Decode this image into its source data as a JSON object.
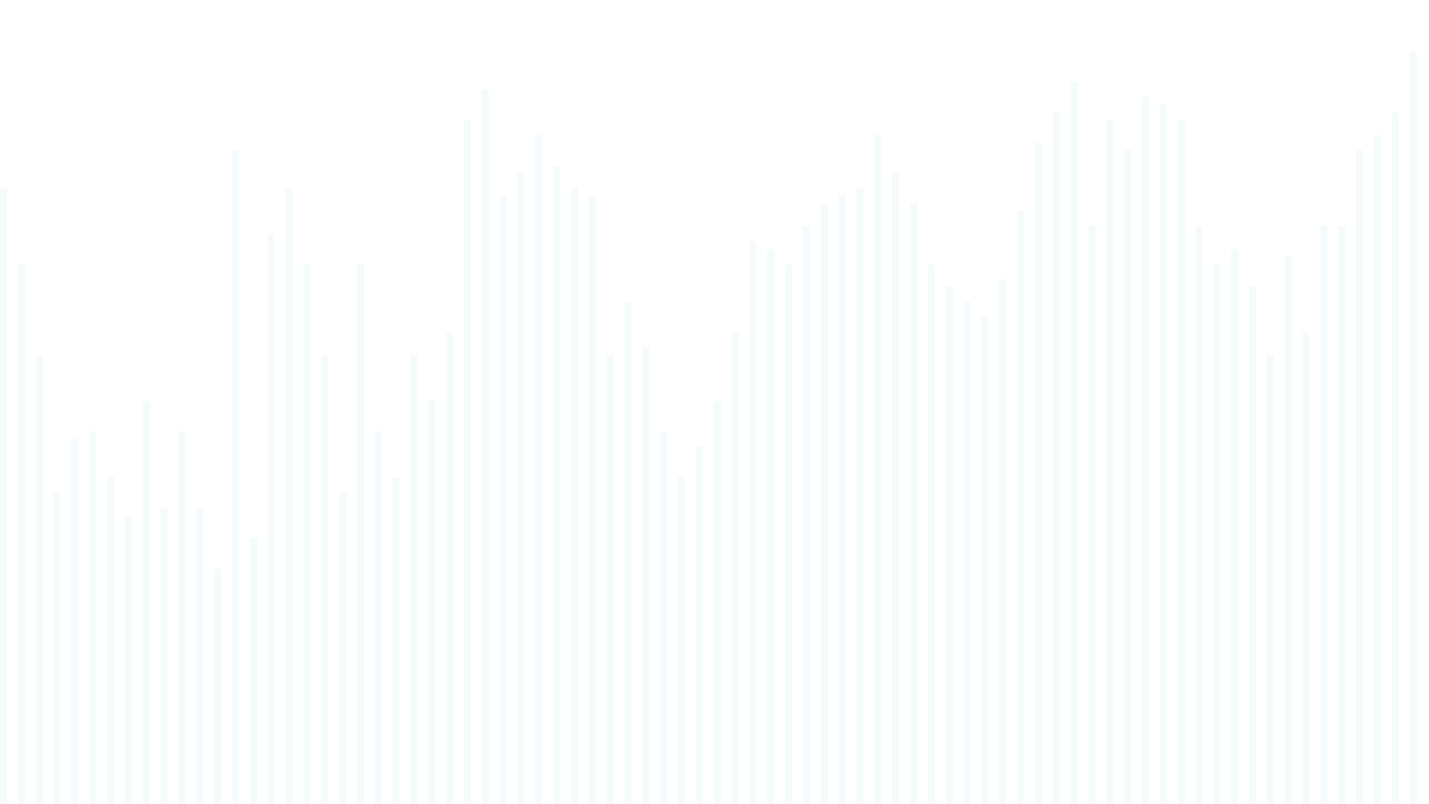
{
  "chart_data": {
    "type": "bar",
    "title": "",
    "xlabel": "",
    "ylabel": "",
    "ylim": [
      0,
      100
    ],
    "grid": false,
    "legend": "none",
    "values": [
      81,
      71,
      59,
      41,
      48,
      49,
      43,
      38,
      53,
      39,
      49,
      39,
      31,
      86,
      35,
      75,
      81,
      71,
      59,
      41,
      71,
      49,
      43,
      59,
      53,
      62,
      90,
      94,
      80,
      83,
      88,
      84,
      81,
      80,
      59,
      66,
      60,
      49,
      43,
      47,
      53,
      62,
      74,
      73,
      71,
      76,
      79,
      80,
      81,
      88,
      83,
      79,
      71,
      68,
      66,
      64,
      69,
      78,
      87,
      91,
      95,
      76,
      90,
      86,
      93,
      92,
      90,
      76,
      71,
      73,
      68,
      59,
      72,
      62,
      76,
      76,
      86,
      88,
      91,
      99
    ],
    "colors": {
      "bar": "#f5fbfd",
      "background": "#ffffff"
    }
  }
}
